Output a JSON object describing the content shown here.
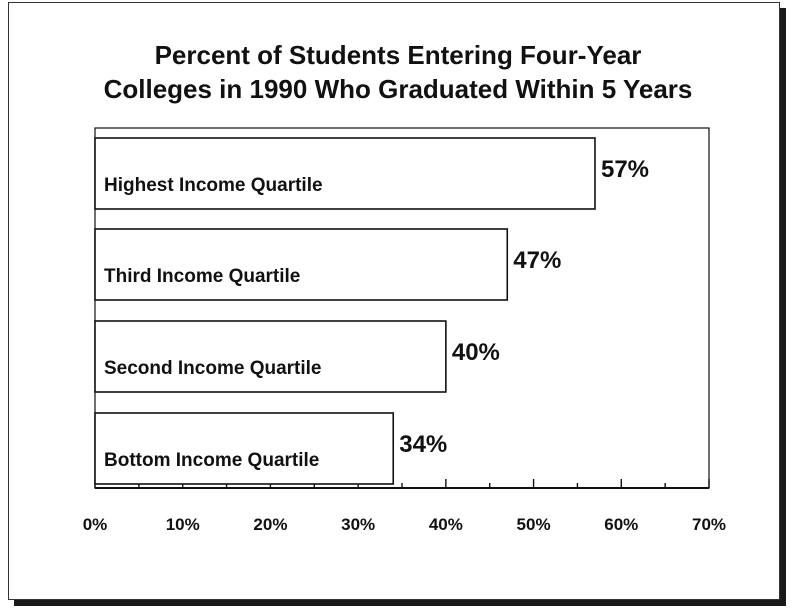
{
  "chart_data": {
    "type": "bar",
    "orientation": "horizontal",
    "title": "Percent of Students Entering Four-Year Colleges in 1990 Who Graduated Within 5 Years",
    "title_lines": [
      "Percent of Students Entering Four-Year",
      "Colleges in 1990 Who Graduated Within 5 Years"
    ],
    "categories": [
      "Highest Income Quartile",
      "Third Income Quartile",
      "Second Income Quartile",
      "Bottom Income Quartile"
    ],
    "values": [
      57,
      47,
      40,
      34
    ],
    "value_labels": [
      "57%",
      "47%",
      "40%",
      "34%"
    ],
    "xlabel": "",
    "ylabel": "",
    "xlim": [
      0,
      70
    ],
    "xticks": [
      0,
      10,
      20,
      30,
      40,
      50,
      60,
      70
    ],
    "xtick_labels": [
      "0%",
      "10%",
      "20%",
      "30%",
      "40%",
      "50%",
      "60%",
      "70%"
    ],
    "grid": false,
    "legend": "none",
    "colors": {
      "bar_fill": "#ffffff",
      "bar_stroke": "#111111",
      "text": "#111111"
    }
  }
}
